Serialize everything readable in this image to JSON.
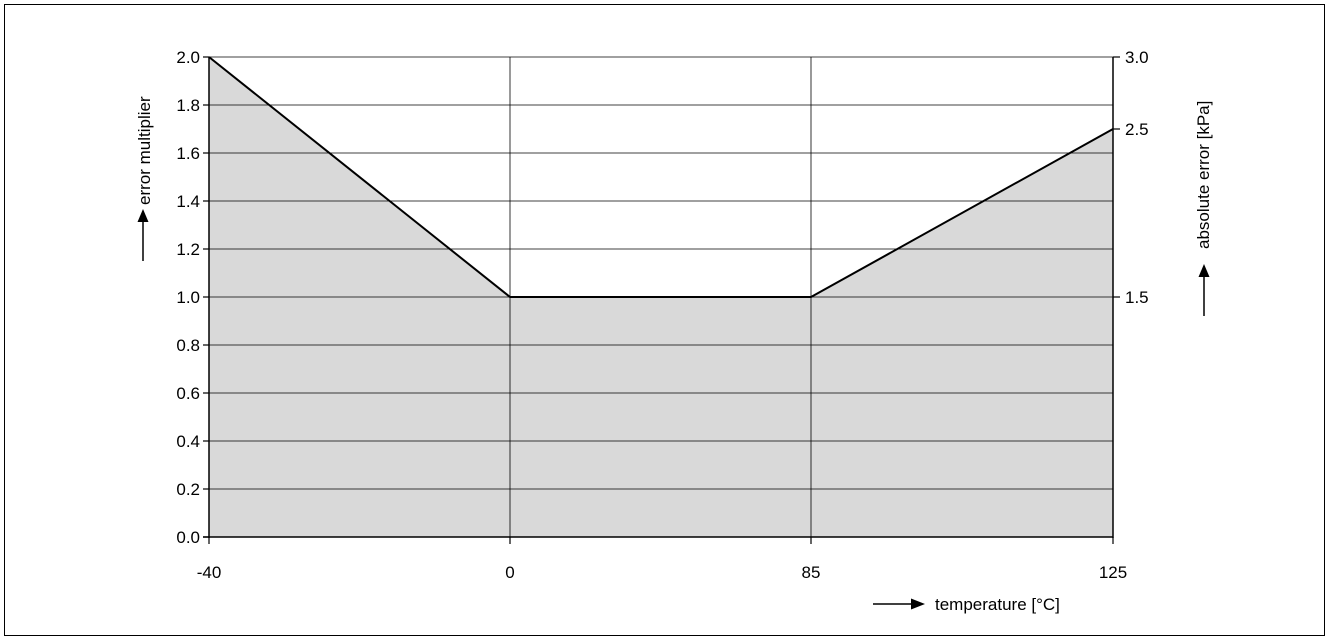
{
  "chart_data": {
    "type": "area",
    "x": [
      -40,
      0,
      85,
      125
    ],
    "series": [
      {
        "values": [
          2.0,
          1.0,
          1.0,
          1.7
        ]
      }
    ],
    "xticks": [
      "-40",
      "0",
      "85",
      "125"
    ],
    "xlabel": "temperature [°C]",
    "ylabel": "error multiplier",
    "ylim": [
      0,
      2.0
    ],
    "yticks": [
      "0.0",
      "0.2",
      "0.4",
      "0.6",
      "0.8",
      "1.0",
      "1.2",
      "1.4",
      "1.6",
      "1.8",
      "2.0"
    ],
    "y2label": "absolute error [kPa]",
    "y2ticks": [
      {
        "label": "1.5",
        "at": 1.0
      },
      {
        "label": "2.5",
        "at": 1.7
      },
      {
        "label": "3.0",
        "at": 2.0
      }
    ],
    "grid": true,
    "legend": "none",
    "colors": {
      "fill": "#d9d9d9",
      "line": "#000000",
      "grid": "#000000"
    }
  }
}
